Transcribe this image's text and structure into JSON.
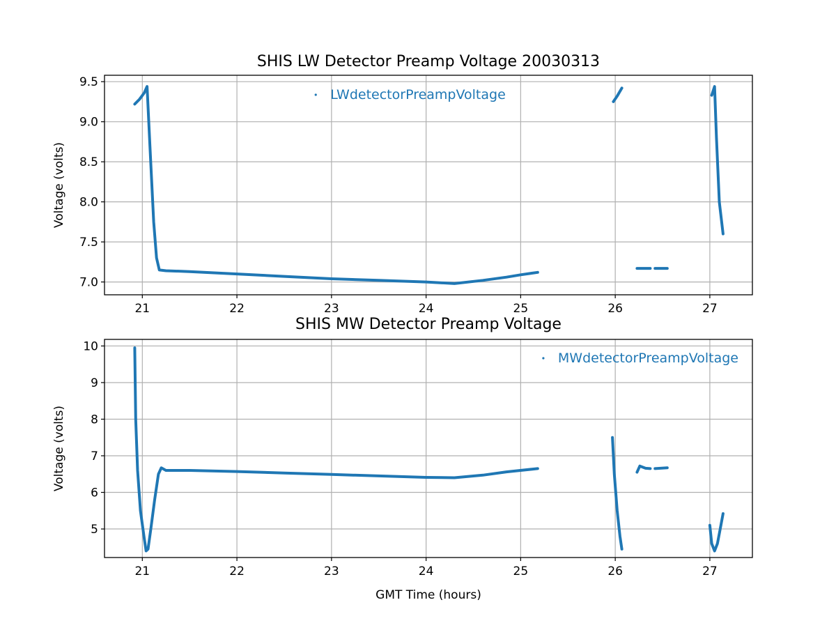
{
  "chart_data": [
    {
      "type": "scatter",
      "title": "SHIS LW Detector Preamp Voltage 20030313",
      "xlabel": "",
      "ylabel": "Voltage (volts)",
      "xlim": [
        20.6,
        27.45
      ],
      "ylim": [
        6.84,
        9.58
      ],
      "xticks": [
        21,
        22,
        23,
        24,
        25,
        26,
        27
      ],
      "yticks": [
        7.0,
        7.5,
        8.0,
        8.5,
        9.0,
        9.5
      ],
      "ytick_labels": [
        "7.0",
        "7.5",
        "8.0",
        "8.5",
        "9.0",
        "9.5"
      ],
      "grid": true,
      "legend": "top-center",
      "color": "#1f77b4",
      "series": [
        {
          "name": "LWdetectorPreampVoltage",
          "segments": [
            {
              "x": [
                20.92,
                20.97,
                21.02,
                21.05,
                21.08,
                21.12,
                21.15,
                21.18,
                21.25,
                21.5,
                22.0,
                22.5,
                23.0,
                23.5,
                24.0,
                24.3,
                24.6,
                24.85,
                25.0,
                25.18
              ],
              "y": [
                9.22,
                9.28,
                9.36,
                9.44,
                8.7,
                7.75,
                7.3,
                7.15,
                7.14,
                7.13,
                7.1,
                7.07,
                7.04,
                7.02,
                7.0,
                6.98,
                7.02,
                7.06,
                7.09,
                7.12
              ]
            },
            {
              "x": [
                25.98,
                26.02,
                26.07
              ],
              "y": [
                9.25,
                9.32,
                9.42
              ]
            },
            {
              "x": [
                26.23,
                26.37
              ],
              "y": [
                7.17,
                7.17
              ]
            },
            {
              "x": [
                26.42,
                26.55
              ],
              "y": [
                7.17,
                7.17
              ]
            },
            {
              "x": [
                27.02,
                27.05,
                27.07,
                27.1,
                27.14
              ],
              "y": [
                9.33,
                9.44,
                8.8,
                8.0,
                7.6
              ]
            }
          ]
        }
      ]
    },
    {
      "type": "scatter",
      "title": "SHIS MW Detector Preamp Voltage",
      "xlabel": "GMT Time (hours)",
      "ylabel": "Voltage (volts)",
      "xlim": [
        20.6,
        27.45
      ],
      "ylim": [
        4.22,
        10.18
      ],
      "xticks": [
        21,
        22,
        23,
        24,
        25,
        26,
        27
      ],
      "yticks": [
        5,
        6,
        7,
        8,
        9,
        10
      ],
      "ytick_labels": [
        "5",
        "6",
        "7",
        "8",
        "9",
        "10"
      ],
      "grid": true,
      "legend": "top-right",
      "color": "#1f77b4",
      "series": [
        {
          "name": "MWdetectorPreampVoltage",
          "segments": [
            {
              "x": [
                20.92,
                20.93,
                20.95,
                20.98,
                21.02,
                21.04,
                21.06,
                21.09,
                21.13,
                21.17,
                21.2,
                21.25,
                21.5,
                22.0,
                22.5,
                23.0,
                23.5,
                24.0,
                24.3,
                24.6,
                24.85,
                25.18
              ],
              "y": [
                9.95,
                8.0,
                6.6,
                5.5,
                4.75,
                4.4,
                4.45,
                5.0,
                5.8,
                6.5,
                6.67,
                6.6,
                6.6,
                6.57,
                6.53,
                6.49,
                6.45,
                6.41,
                6.4,
                6.47,
                6.56,
                6.65
              ]
            },
            {
              "x": [
                25.97,
                25.99,
                26.02,
                26.05,
                26.07
              ],
              "y": [
                7.5,
                6.5,
                5.5,
                4.8,
                4.45
              ]
            },
            {
              "x": [
                26.23,
                26.26,
                26.32,
                26.37
              ],
              "y": [
                6.55,
                6.72,
                6.66,
                6.65
              ]
            },
            {
              "x": [
                26.42,
                26.55
              ],
              "y": [
                6.65,
                6.67
              ]
            },
            {
              "x": [
                27.0,
                27.02,
                27.05,
                27.08,
                27.11,
                27.14
              ],
              "y": [
                5.1,
                4.6,
                4.4,
                4.6,
                5.0,
                5.42
              ]
            }
          ]
        }
      ]
    }
  ]
}
